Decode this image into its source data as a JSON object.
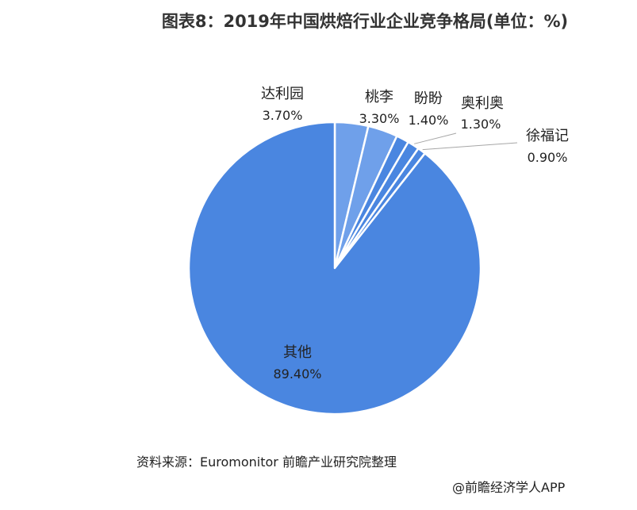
{
  "title": "图表8：2019年中国烘焙行业企业竞争格局(单位：%)",
  "source": "资料来源：Euromonitor 前瞻产业研究院整理",
  "credit": "@前瞻经济学人APP",
  "colors": {
    "dark": "#4a86e0",
    "light": "#6fa0ea",
    "edge": "#ffffff",
    "leader": "#a6a6a6"
  },
  "chart_data": {
    "type": "pie",
    "title": "图表8：2019年中国烘焙行业企业竞争格局(单位：%)",
    "slices": [
      {
        "name": "达利园",
        "value": 3.7,
        "label": "3.70%"
      },
      {
        "name": "桃李",
        "value": 3.3,
        "label": "3.30%"
      },
      {
        "name": "盼盼",
        "value": 1.4,
        "label": "1.40%"
      },
      {
        "name": "奥利奥",
        "value": 1.3,
        "label": "1.30%"
      },
      {
        "name": "徐福记",
        "value": 0.9,
        "label": "0.90%"
      },
      {
        "name": "其他",
        "value": 89.4,
        "label": "89.40%"
      }
    ],
    "start_angle": "12 o'clock",
    "direction": "clockwise"
  }
}
